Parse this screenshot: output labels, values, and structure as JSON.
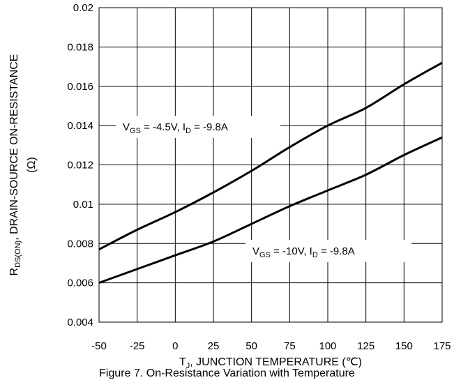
{
  "chart_data": {
    "type": "line",
    "xlim": [
      -50,
      175
    ],
    "ylim": [
      0.004,
      0.02
    ],
    "x_ticks": [
      "-50",
      "-25",
      "0",
      "25",
      "50",
      "75",
      "100",
      "125",
      "150",
      "175"
    ],
    "y_ticks": [
      "0.004",
      "0.006",
      "0.008",
      "0.01",
      "0.012",
      "0.014",
      "0.016",
      "0.018",
      "0.02"
    ],
    "grid": true,
    "xlabel": {
      "main": "T",
      "sub": "J",
      "rest": ", JUNCTION TEMPERATURE (℃)"
    },
    "ylabel": {
      "main": "R",
      "sub": "DS(ON)",
      "rest": ", DRAIN-SOURCE ON-RESISTANCE",
      "unit": "(Ω)"
    },
    "series": [
      {
        "x": [
          -50,
          -25,
          0,
          25,
          50,
          75,
          100,
          125,
          150,
          175
        ],
        "y": [
          0.0077,
          0.0087,
          0.0096,
          0.0106,
          0.0117,
          0.0129,
          0.014,
          0.0149,
          0.0161,
          0.0172
        ]
      },
      {
        "x": [
          -50,
          -25,
          0,
          25,
          50,
          75,
          100,
          125,
          150,
          175
        ],
        "y": [
          0.006,
          0.0067,
          0.0074,
          0.0081,
          0.009,
          0.0099,
          0.0107,
          0.0115,
          0.0125,
          0.0134
        ]
      }
    ],
    "annotations": [
      {
        "parts": [
          {
            "t": "V"
          },
          {
            "t": "GS",
            "sub": true
          },
          {
            "t": " = -4.5V, I"
          },
          {
            "t": "D",
            "sub": true
          },
          {
            "t": " = -9.8A"
          }
        ]
      },
      {
        "parts": [
          {
            "t": "V"
          },
          {
            "t": "GS",
            "sub": true
          },
          {
            "t": " = -10V, I"
          },
          {
            "t": "D",
            "sub": true
          },
          {
            "t": " = -9.8A"
          }
        ]
      }
    ]
  },
  "caption": "Figure 7. On-Resistance Variation with Temperature"
}
